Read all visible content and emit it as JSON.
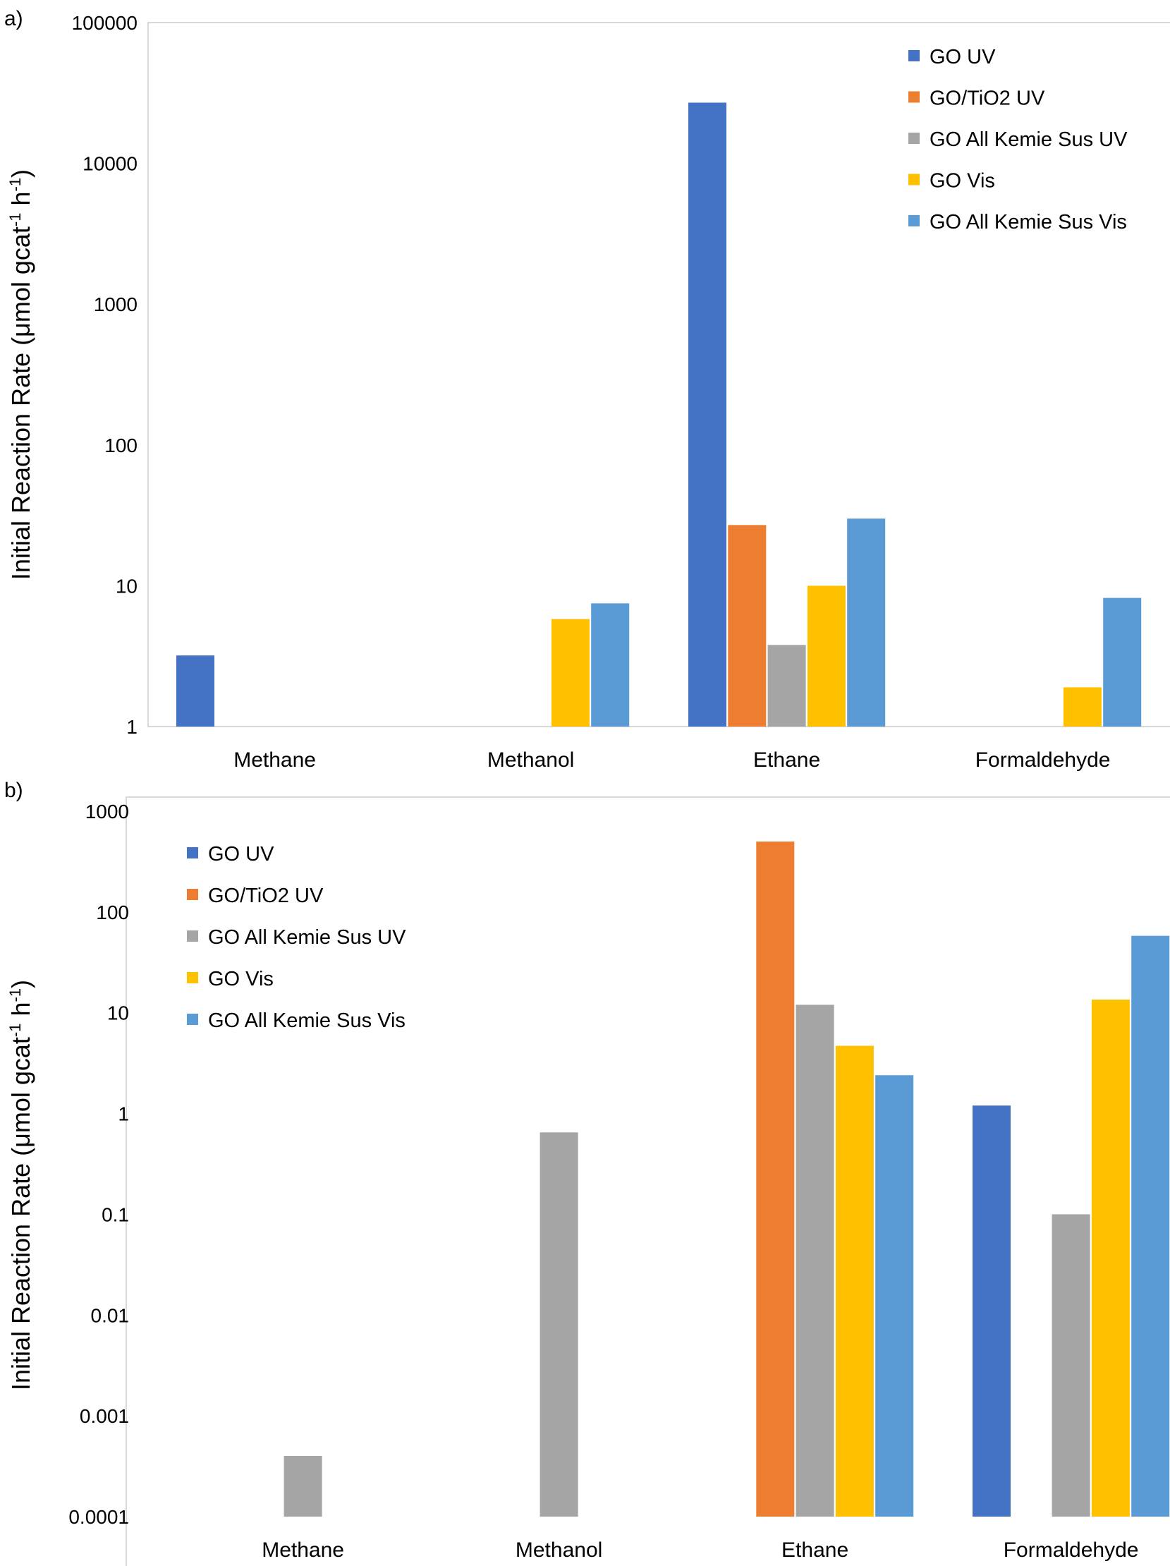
{
  "chart_data": [
    {
      "type": "bar",
      "panel_label": "a)",
      "scale": "log",
      "ylim": [
        1,
        100000
      ],
      "yticks": [
        "1",
        "10",
        "100",
        "1000",
        "10000",
        "100000"
      ],
      "ylabel_main": "Initial Reaction Rate (μmol gcat",
      "ylabel_sup1": "-1",
      "ylabel_mid": " h",
      "ylabel_sup2": "-1",
      "ylabel_end": ")",
      "categories": [
        "Methane",
        "Methanol",
        "Ethane",
        "Formaldehyde"
      ],
      "legend_position": "top-right",
      "series": [
        {
          "name": "GO UV",
          "color": "#4472C4",
          "values": [
            3.2,
            null,
            27000,
            null
          ]
        },
        {
          "name": "GO/TiO2 UV",
          "color": "#ED7D31",
          "values": [
            null,
            null,
            27,
            null
          ]
        },
        {
          "name": "GO All Kemie Sus UV",
          "color": "#A5A5A5",
          "values": [
            null,
            null,
            3.8,
            null
          ]
        },
        {
          "name": "GO Vis",
          "color": "#FFC000",
          "values": [
            null,
            5.8,
            10,
            1.9
          ]
        },
        {
          "name": "GO All Kemie Sus Vis",
          "color": "#5B9BD5",
          "values": [
            null,
            7.5,
            30,
            8.2
          ]
        }
      ]
    },
    {
      "type": "bar",
      "panel_label": "b)",
      "scale": "log",
      "ylim": [
        0.0001,
        1000
      ],
      "yticks": [
        "0.0001",
        "0.001",
        "0.01",
        "0.1",
        "1",
        "10",
        "100",
        "1000"
      ],
      "ylabel_main": "Initial Reaction Rate (μmol gcat",
      "ylabel_sup1": "-1",
      "ylabel_mid": " h",
      "ylabel_sup2": "-1",
      "ylabel_end": ")",
      "categories": [
        "Methane",
        "Methanol",
        "Ethane",
        "Formaldehyde"
      ],
      "legend_position": "top-left",
      "series": [
        {
          "name": "GO UV",
          "color": "#4472C4",
          "values": [
            null,
            null,
            null,
            1.2
          ]
        },
        {
          "name": "GO/TiO2 UV",
          "color": "#ED7D31",
          "values": [
            null,
            null,
            500,
            null
          ]
        },
        {
          "name": "GO All Kemie Sus UV",
          "color": "#A5A5A5",
          "values": [
            0.0004,
            0.65,
            12,
            0.1
          ]
        },
        {
          "name": "GO Vis",
          "color": "#FFC000",
          "values": [
            null,
            null,
            4.7,
            13.5
          ]
        },
        {
          "name": "GO All Kemie Sus Vis",
          "color": "#5B9BD5",
          "values": [
            null,
            null,
            2.4,
            58
          ]
        }
      ]
    }
  ]
}
